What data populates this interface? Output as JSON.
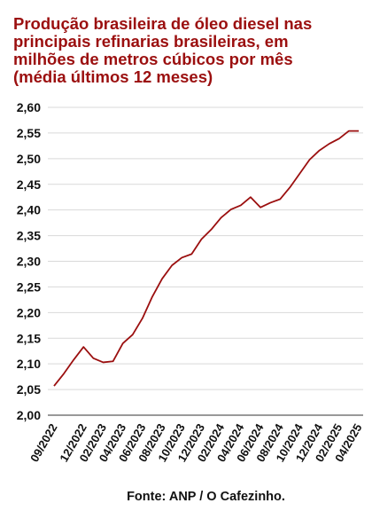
{
  "chart_data": {
    "type": "line",
    "title_lines": [
      "Produção brasileira de óleo diesel nas",
      "principais refinarias brasileiras, em",
      "milhões de metros cúbicos por mês",
      "(média últimos 12 meses)"
    ],
    "source": "Fonte: ANP / O Cafezinho.",
    "ylim": [
      2.0,
      2.6
    ],
    "y_ticks": [
      "2,00",
      "2,05",
      "2,10",
      "2,15",
      "2,20",
      "2,25",
      "2,30",
      "2,35",
      "2,40",
      "2,45",
      "2,50",
      "2,55",
      "2,60"
    ],
    "x_tick_labels": [
      "09/2022",
      "12/2022",
      "02/2023",
      "04/2023",
      "06/2023",
      "08/2023",
      "10/2023",
      "12/2023",
      "02/2024",
      "04/2024",
      "06/2024",
      "08/2024",
      "10/2024",
      "12/2024",
      "02/2025",
      "04/2025"
    ],
    "grid": true,
    "line_color": "#9b0f0f",
    "series": [
      {
        "x": [
          "09/2022",
          "10/2022",
          "11/2022",
          "12/2022",
          "01/2023",
          "02/2023",
          "03/2023",
          "04/2023",
          "05/2023",
          "06/2023",
          "07/2023",
          "08/2023",
          "09/2023",
          "10/2023",
          "11/2023",
          "12/2023",
          "01/2024",
          "02/2024",
          "03/2024",
          "04/2024",
          "05/2024",
          "06/2024",
          "07/2024",
          "08/2024",
          "09/2024",
          "10/2024",
          "11/2024",
          "12/2024",
          "01/2025",
          "02/2025",
          "03/2025",
          "04/2025"
        ],
        "values": [
          2.057,
          2.081,
          2.108,
          2.133,
          2.111,
          2.103,
          2.105,
          2.14,
          2.157,
          2.189,
          2.231,
          2.266,
          2.292,
          2.307,
          2.314,
          2.343,
          2.362,
          2.385,
          2.401,
          2.409,
          2.425,
          2.405,
          2.414,
          2.421,
          2.444,
          2.471,
          2.498,
          2.516,
          2.529,
          2.539,
          2.554,
          2.554
        ]
      }
    ]
  }
}
